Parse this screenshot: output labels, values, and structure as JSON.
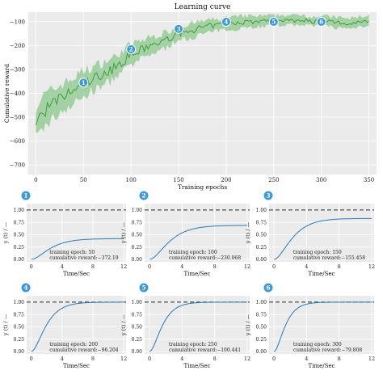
{
  "colors": {
    "panel_bg": "#ebebeb",
    "grid": "#ffffff",
    "learning_line": "#3f9b3f",
    "learning_band": "#8cc88c",
    "response_line": "#2a7ab9",
    "reference_line": "#222222",
    "marker_fill": "#3d9ad6"
  },
  "chart_data": [
    {
      "type": "line",
      "title": "Learning curve",
      "xlabel": "Training epochs",
      "ylabel": "Cumulative reward",
      "xlim": [
        -8,
        358
      ],
      "ylim": [
        -740,
        -60
      ],
      "xticks": [
        0,
        50,
        100,
        150,
        200,
        250,
        300,
        350
      ],
      "yticks": [
        -700,
        -600,
        -500,
        -400,
        -300,
        -200,
        -100
      ],
      "grid": true,
      "mean_curve": {
        "x": [
          0,
          10,
          20,
          30,
          40,
          50,
          60,
          70,
          80,
          90,
          100,
          110,
          120,
          130,
          140,
          150,
          160,
          170,
          180,
          190,
          200,
          210,
          220,
          230,
          240,
          250,
          260,
          270,
          280,
          290,
          300,
          310,
          320,
          330,
          340,
          350
        ],
        "y": [
          -520,
          -470,
          -440,
          -410,
          -390,
          -360,
          -340,
          -320,
          -300,
          -270,
          -240,
          -220,
          -200,
          -190,
          -170,
          -150,
          -140,
          -130,
          -120,
          -115,
          -110,
          -105,
          -100,
          -100,
          -98,
          -95,
          -92,
          -95,
          -90,
          -100,
          -95,
          -100,
          -105,
          -110,
          -98,
          -95
        ]
      },
      "band_halfwidth": [
        70,
        65,
        60,
        55,
        55,
        55,
        50,
        50,
        45,
        45,
        45,
        40,
        35,
        35,
        30,
        30,
        30,
        28,
        26,
        25,
        25,
        24,
        24,
        22,
        22,
        20,
        20,
        20,
        20,
        22,
        20,
        20,
        22,
        22,
        20,
        20
      ],
      "markers": [
        {
          "label": "1",
          "x": 50,
          "y": -355
        },
        {
          "label": "2",
          "x": 100,
          "y": -215
        },
        {
          "label": "3",
          "x": 150,
          "y": -130
        },
        {
          "label": "4",
          "x": 200,
          "y": -85
        },
        {
          "label": "5",
          "x": 250,
          "y": -75
        },
        {
          "label": "6",
          "x": 300,
          "y": -60
        }
      ]
    },
    {
      "type": "line",
      "badge": "1",
      "xlabel": "Time/Sec",
      "ylabel": "y (t) / —",
      "xlim": [
        -0.6,
        12.3
      ],
      "ylim": [
        -0.05,
        1.13
      ],
      "xticks": [
        0,
        4,
        8,
        12
      ],
      "yticks": [
        0.0,
        0.25,
        0.5,
        0.75,
        1.0
      ],
      "reference": 1.0,
      "final_value": 0.42,
      "tau": 1.4,
      "annotation": [
        "training epoch: 50",
        "cumulative reward:−372.19"
      ]
    },
    {
      "type": "line",
      "badge": "2",
      "xlabel": "Time/Sec",
      "ylabel": "y (t) / —",
      "xlim": [
        -0.6,
        12.3
      ],
      "ylim": [
        -0.05,
        1.13
      ],
      "xticks": [
        0,
        4,
        8,
        12
      ],
      "yticks": [
        0.0,
        0.25,
        0.5,
        0.75,
        1.0
      ],
      "reference": 1.0,
      "final_value": 0.69,
      "tau": 1.4,
      "annotation": [
        "training epoch: 100",
        "cumulative reward:−230.068"
      ]
    },
    {
      "type": "line",
      "badge": "3",
      "xlabel": "Time/Sec",
      "ylabel": "y (t) / —",
      "xlim": [
        -0.6,
        12.3
      ],
      "ylim": [
        -0.05,
        1.13
      ],
      "xticks": [
        0,
        4,
        8,
        12
      ],
      "yticks": [
        0.0,
        0.25,
        0.5,
        0.75,
        1.0
      ],
      "reference": 1.0,
      "final_value": 0.83,
      "tau": 1.3,
      "annotation": [
        "training epoch: 150",
        "cumulative reward:−155.458"
      ]
    },
    {
      "type": "line",
      "badge": "4",
      "xlabel": "Time/Sec",
      "ylabel": "y (t) / —",
      "xlim": [
        -0.6,
        12.3
      ],
      "ylim": [
        -0.05,
        1.13
      ],
      "xticks": [
        0,
        4,
        8,
        12
      ],
      "yticks": [
        0.0,
        0.25,
        0.5,
        0.75,
        1.0
      ],
      "reference": 1.0,
      "final_value": 1.0,
      "tau": 1.1,
      "annotation": [
        "training epoch: 200",
        "cumulative reward:−96.204"
      ]
    },
    {
      "type": "line",
      "badge": "5",
      "xlabel": "Time/Sec",
      "ylabel": "y (t) / —",
      "xlim": [
        -0.6,
        12.3
      ],
      "ylim": [
        -0.05,
        1.13
      ],
      "xticks": [
        0,
        4,
        8,
        12
      ],
      "yticks": [
        0.0,
        0.25,
        0.5,
        0.75,
        1.0
      ],
      "reference": 1.0,
      "final_value": 1.0,
      "tau": 0.9,
      "annotation": [
        "training epoch: 250",
        "cumulative reward:−100.441"
      ]
    },
    {
      "type": "line",
      "badge": "6",
      "xlabel": "Time/Sec",
      "ylabel": "y (t) / —",
      "xlim": [
        -0.6,
        12.3
      ],
      "ylim": [
        -0.05,
        1.13
      ],
      "xticks": [
        0,
        4,
        8,
        12
      ],
      "yticks": [
        0.0,
        0.25,
        0.5,
        0.75,
        1.0
      ],
      "reference": 1.0,
      "final_value": 1.0,
      "tau": 0.8,
      "annotation": [
        "training epoch: 300",
        "cumulative reward:−79.808"
      ]
    }
  ]
}
